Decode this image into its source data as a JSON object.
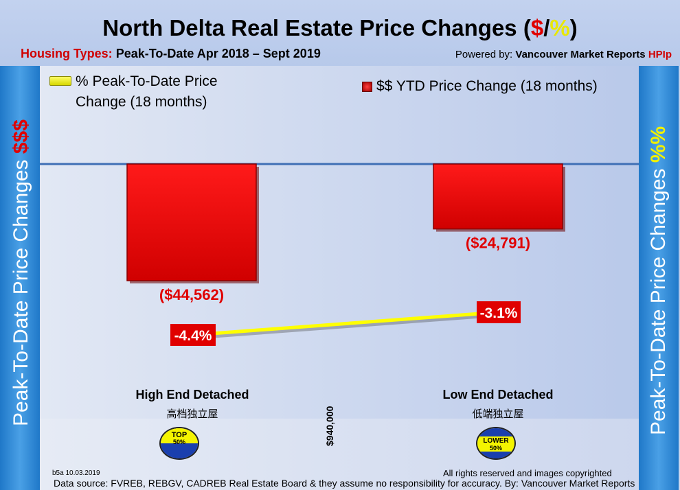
{
  "header": {
    "title_main": "North Delta Real Estate Price Changes (",
    "title_dollar": "$",
    "title_slash": "/",
    "title_pct": "%",
    "title_close": ")",
    "subtitle_label": "Housing Types:",
    "subtitle_text": "Peak-To-Date Apr 2018 – Sept 2019",
    "powered_prefix": "Powered by:",
    "powered_name": "Vancouver Market Reports",
    "powered_hpi": "HPIp"
  },
  "side_left": {
    "text": "Peak-To-Date Price Changes ",
    "accent": "$$$"
  },
  "side_right": {
    "text": "Peak-To-Date  Price  Changes  ",
    "accent": "%%"
  },
  "legend": {
    "pct_label_line1": "% Peak-To-Date Price",
    "pct_label_line2": "Change (18 months)",
    "dollar_label": "$$ YTD Price Change (18 months)"
  },
  "chart_data": {
    "type": "bar",
    "categories": [
      "High End Detached",
      "Low End Detached"
    ],
    "categories_sub": [
      "高档独立屋",
      "低端独立屋"
    ],
    "series": [
      {
        "name": "$$ YTD Price Change (18 months)",
        "kind": "bar",
        "values": [
          -44562,
          -24791
        ],
        "labels": [
          "($44,562)",
          "($24,791)"
        ],
        "color": "#e00000"
      },
      {
        "name": "% Peak-To-Date Price Change (18 months)",
        "kind": "line",
        "values": [
          -4.4,
          -3.1
        ],
        "labels": [
          "-4.4%",
          "-3.1%"
        ],
        "color": "#ffff00"
      }
    ]
  },
  "badges": {
    "top_line1": "TOP",
    "top_line2": "50%",
    "lower_line1": "LOWER",
    "lower_line2": "50%"
  },
  "divider_label": "$940,000",
  "footer": {
    "code": "b5a 10.03.2019",
    "rights": "All rights reserved and  images copyrighted",
    "source": "Data source: FVREB, REBGV, CADREB Real Estate Board & they assume no responsibility for accuracy. By: Vancouver Market Reports"
  },
  "colors": {
    "bar": "#e00000",
    "line": "#ffff00",
    "side": "#2d86d6"
  }
}
